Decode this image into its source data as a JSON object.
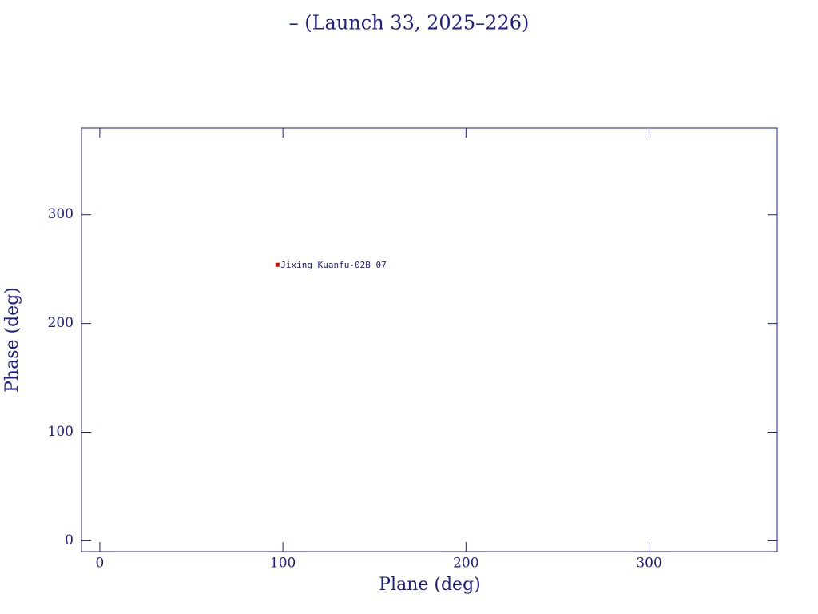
{
  "chart_data": {
    "type": "scatter",
    "title": "– (Launch 33, 2025–226)",
    "x_label": "Plane (deg)",
    "y_label": "Phase (deg)",
    "xlim": [
      -10,
      370
    ],
    "ylim": [
      -10,
      380
    ],
    "xticks": [
      0,
      100,
      200,
      300
    ],
    "yticks": [
      0,
      100,
      200,
      300
    ],
    "axis_color": "#1c1c8c",
    "series": [
      {
        "name": "Jixing Kuanfu-02B 07",
        "color": "#e00000",
        "x": [
          97
        ],
        "values": [
          254
        ]
      }
    ]
  }
}
